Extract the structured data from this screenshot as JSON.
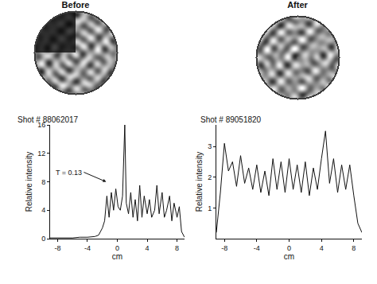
{
  "panels": [
    {
      "title": "Before"
    },
    {
      "title": "After"
    }
  ],
  "chart_data": [
    {
      "type": "line",
      "title": "Shot # 88062017",
      "x_label": "cm",
      "y_label": "Relative intensity",
      "x": [
        -9,
        -8,
        -7,
        -6,
        -5,
        -4,
        -3,
        -2.5,
        -2,
        -1.7,
        -1.4,
        -1.1,
        -0.8,
        -0.5,
        -0.2,
        0.1,
        0.4,
        0.7,
        1,
        1.2,
        1.5,
        1.8,
        2.1,
        2.4,
        2.7,
        3,
        3.3,
        3.6,
        4,
        4.3,
        4.6,
        5,
        5.3,
        5.6,
        6,
        6.3,
        6.6,
        7,
        7.3,
        7.6,
        8,
        8.3,
        8.6,
        9
      ],
      "values": [
        0.1,
        0.1,
        0.1,
        0.1,
        0.2,
        0.2,
        0.3,
        0.5,
        1.5,
        2.5,
        6,
        3,
        6.5,
        4,
        7,
        4.5,
        4,
        6,
        16,
        5,
        3.5,
        6.5,
        3,
        5.5,
        2.5,
        7.5,
        3,
        6,
        3.5,
        5.5,
        3,
        4,
        7.5,
        3.5,
        6.5,
        3,
        4,
        6,
        2.5,
        5,
        3,
        4.5,
        1,
        0.2
      ],
      "color": "#111111",
      "xlim": [
        -9,
        9
      ],
      "xticks": [
        -8,
        -4,
        0,
        4,
        8
      ],
      "ylim": [
        0,
        16
      ],
      "yticks": [
        0,
        4,
        8,
        12,
        16
      ],
      "annotations": [
        {
          "text": "T = 0.13",
          "x": -1.5,
          "y": 8
        }
      ],
      "grid": false
    },
    {
      "type": "line",
      "title": "Shot # 89051820",
      "x_label": "cm",
      "y_label": "Relative intensity",
      "x": [
        -9,
        -8.5,
        -8,
        -7.5,
        -7,
        -6.5,
        -6,
        -5.5,
        -5,
        -4.5,
        -4,
        -3.5,
        -3,
        -2.5,
        -2,
        -1.5,
        -1,
        -0.5,
        0,
        0.5,
        1,
        1.5,
        2,
        2.5,
        3,
        3.5,
        4,
        4.5,
        5,
        5.5,
        6,
        6.5,
        7,
        7.5,
        8,
        8.5,
        9
      ],
      "values": [
        0.2,
        1.5,
        3.1,
        2.2,
        2.5,
        1.7,
        2.7,
        1.8,
        2.3,
        1.6,
        2.4,
        1.5,
        2.2,
        1.4,
        2.6,
        1.6,
        2.5,
        1.5,
        2.6,
        1.6,
        2.4,
        1.5,
        2.5,
        1.4,
        2.3,
        1.6,
        2.6,
        3.5,
        1.8,
        2.6,
        1.5,
        2.4,
        1.6,
        2.4,
        1.4,
        0.5,
        0.2
      ],
      "color": "#111111",
      "xlim": [
        -9,
        9
      ],
      "xticks": [
        -8,
        -4,
        0,
        4,
        8
      ],
      "ylim": [
        0,
        3.7
      ],
      "yticks": [
        1,
        2,
        3
      ],
      "grid": false
    }
  ]
}
